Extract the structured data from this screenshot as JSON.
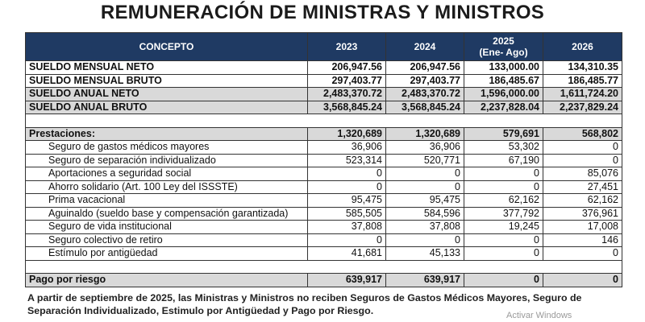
{
  "title": "REMUNERACIÓN DE MINISTRAS Y MINISTROS",
  "headers": {
    "concepto": "CONCEPTO",
    "y2023": "2023",
    "y2024": "2024",
    "y2025_line1": "2025",
    "y2025_line2": "(Ene- Ago)",
    "y2026": "2026"
  },
  "summary_rows": [
    {
      "concept": "SUELDO MENSUAL NETO",
      "v2023": "206,947.56",
      "v2024": "206,947.56",
      "v2025": "133,000.00",
      "v2026": "134,310.35"
    },
    {
      "concept": "SUELDO MENSUAL BRUTO",
      "v2023": "297,403.77",
      "v2024": "297,403.77",
      "v2025": "186,485.67",
      "v2026": "186,485.77"
    },
    {
      "concept": "SUELDO ANUAL NETO",
      "v2023": "2,483,370.72",
      "v2024": "2,483,370.72",
      "v2025": "1,596,000.00",
      "v2026": "1,611,724.20"
    },
    {
      "concept": "SUELDO ANUAL BRUTO",
      "v2023": "3,568,845.24",
      "v2024": "3,568,845.24",
      "v2025": "2,237,828.04",
      "v2026": "2,237,829.24"
    }
  ],
  "prestaciones": {
    "concept": "Prestaciones:",
    "v2023": "1,320,689",
    "v2024": "1,320,689",
    "v2025": "579,691",
    "v2026": "568,802"
  },
  "detail_rows": [
    {
      "concept": "Seguro de gastos médicos mayores",
      "v2023": "36,906",
      "v2024": "36,906",
      "v2025": "53,302",
      "v2026": "0"
    },
    {
      "concept": "Seguro de separación individualizado",
      "v2023": "523,314",
      "v2024": "520,771",
      "v2025": "67,190",
      "v2026": "0"
    },
    {
      "concept": "Aportaciones a seguridad social",
      "v2023": "0",
      "v2024": "0",
      "v2025": "0",
      "v2026": "85,076"
    },
    {
      "concept": "Ahorro solidario (Art. 100 Ley del ISSSTE)",
      "v2023": "0",
      "v2024": "0",
      "v2025": "0",
      "v2026": "27,451"
    },
    {
      "concept": "Prima vacacional",
      "v2023": "95,475",
      "v2024": "95,475",
      "v2025": "62,162",
      "v2026": "62,162"
    },
    {
      "concept": "Aguinaldo (sueldo base y compensación garantizada)",
      "v2023": "585,505",
      "v2024": "584,596",
      "v2025": "377,792",
      "v2026": "376,961"
    },
    {
      "concept": "Seguro de vida institucional",
      "v2023": "37,808",
      "v2024": "37,808",
      "v2025": "19,245",
      "v2026": "17,008"
    },
    {
      "concept": "Seguro colectivo de retiro",
      "v2023": "0",
      "v2024": "0",
      "v2025": "0",
      "v2026": "146"
    },
    {
      "concept": "Estímulo por antigüedad",
      "v2023": "41,681",
      "v2024": "45,133",
      "v2025": "0",
      "v2026": "0"
    }
  ],
  "pago_riesgo": {
    "concept": "Pago por riesgo",
    "v2023": "639,917",
    "v2024": "639,917",
    "v2025": "0",
    "v2026": "0"
  },
  "note": "A partir de septiembre de 2025, las Ministras y Ministros no reciben Seguros de Gastos Médicos Mayores, Seguro de Separación Individualizado, Estimulo por Antigüedad y Pago por Riesgo.",
  "watermark": "Activar Windows",
  "colors": {
    "header_bg": "#1f3a63",
    "shade_bg": "#d9d9d9"
  }
}
